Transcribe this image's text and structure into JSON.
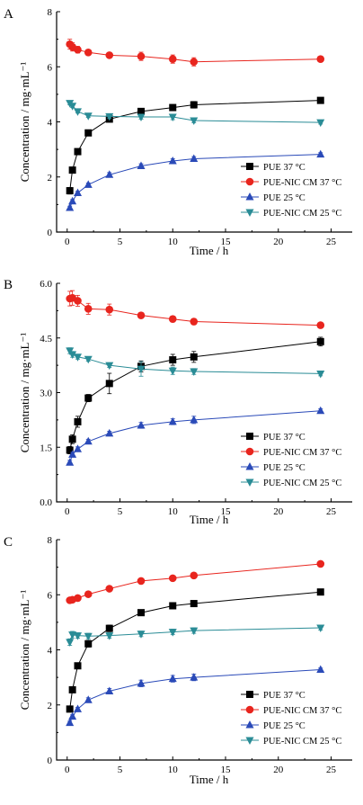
{
  "chart_data": [
    {
      "type": "line",
      "panel": "A",
      "xlabel": "Time / h",
      "ylabel": "Concentration / mg·mL⁻¹",
      "xlim": [
        -1,
        27
      ],
      "ylim": [
        0,
        8
      ],
      "xticks": [
        0,
        5,
        10,
        15,
        20,
        25
      ],
      "yticks": [
        0,
        2,
        4,
        6,
        8
      ],
      "ytick_labels": [
        "0",
        "2",
        "4",
        "6",
        "8"
      ],
      "legend_position": "bottom-right",
      "series": [
        {
          "name": "PUE 37 °C",
          "color": "#000000",
          "marker": "square",
          "x": [
            0.25,
            0.5,
            1,
            2,
            4,
            7,
            10,
            12,
            24
          ],
          "y": [
            1.5,
            2.25,
            2.92,
            3.6,
            4.1,
            4.38,
            4.52,
            4.62,
            4.78
          ],
          "err": [
            0.12,
            0.1,
            0.1,
            0.08,
            0.1,
            0.1,
            0.1,
            0.12,
            0.08
          ]
        },
        {
          "name": "PUE-NIC CM 37 °C",
          "color": "#e8251e",
          "marker": "circle",
          "x": [
            0.25,
            0.5,
            1,
            2,
            4,
            7,
            10,
            12,
            24
          ],
          "y": [
            6.82,
            6.72,
            6.62,
            6.52,
            6.42,
            6.38,
            6.28,
            6.18,
            6.28
          ],
          "err": [
            0.18,
            0.15,
            0.12,
            0.1,
            0.1,
            0.15,
            0.15,
            0.15,
            0.05
          ]
        },
        {
          "name": "PUE 25 °C",
          "color": "#2a4ab8",
          "marker": "triangle-up",
          "x": [
            0.25,
            0.5,
            1,
            2,
            4,
            7,
            10,
            12,
            24
          ],
          "y": [
            0.88,
            1.12,
            1.42,
            1.72,
            2.08,
            2.4,
            2.58,
            2.66,
            2.82
          ],
          "err": [
            0.06,
            0.06,
            0.06,
            0.06,
            0.08,
            0.08,
            0.08,
            0.08,
            0.06
          ]
        },
        {
          "name": "PUE-NIC CM 25 °C",
          "color": "#2a8c96",
          "marker": "triangle-down",
          "x": [
            0.25,
            0.5,
            1,
            2,
            4,
            7,
            10,
            12,
            24
          ],
          "y": [
            4.68,
            4.58,
            4.38,
            4.22,
            4.2,
            4.18,
            4.18,
            4.05,
            3.98
          ],
          "err": [
            0.06,
            0.06,
            0.06,
            0.06,
            0.08,
            0.08,
            0.1,
            0.08,
            0.06
          ]
        }
      ]
    },
    {
      "type": "line",
      "panel": "B",
      "xlabel": "Time / h",
      "ylabel": "Concentration / mg·mL⁻¹",
      "xlim": [
        -1,
        27
      ],
      "ylim": [
        0,
        6
      ],
      "xticks": [
        0,
        5,
        10,
        15,
        20,
        25
      ],
      "yticks": [
        0,
        1.5,
        3,
        4.5,
        6
      ],
      "ytick_labels": [
        "0.0",
        "1.5",
        "3.0",
        "4.5",
        "6.0"
      ],
      "legend_position": "bottom-right",
      "series": [
        {
          "name": "PUE 37 °C",
          "color": "#000000",
          "marker": "square",
          "x": [
            0.25,
            0.5,
            1,
            2,
            4,
            7,
            10,
            12,
            24
          ],
          "y": [
            1.42,
            1.72,
            2.2,
            2.85,
            3.25,
            3.72,
            3.9,
            3.98,
            4.4
          ],
          "err": [
            0.1,
            0.12,
            0.15,
            0.1,
            0.28,
            0.15,
            0.15,
            0.15,
            0.12
          ]
        },
        {
          "name": "PUE-NIC CM 37 °C",
          "color": "#e8251e",
          "marker": "circle",
          "x": [
            0.25,
            0.5,
            1,
            2,
            4,
            7,
            10,
            12,
            24
          ],
          "y": [
            5.58,
            5.6,
            5.52,
            5.3,
            5.28,
            5.12,
            5.02,
            4.95,
            4.85
          ],
          "err": [
            0.2,
            0.2,
            0.15,
            0.15,
            0.15,
            0.08,
            0.08,
            0.08,
            0.06
          ]
        },
        {
          "name": "PUE 25 °C",
          "color": "#2a4ab8",
          "marker": "triangle-up",
          "x": [
            0.25,
            0.5,
            1,
            2,
            4,
            7,
            10,
            12,
            24
          ],
          "y": [
            1.08,
            1.3,
            1.45,
            1.66,
            1.88,
            2.1,
            2.2,
            2.25,
            2.5
          ],
          "err": [
            0.06,
            0.06,
            0.06,
            0.06,
            0.06,
            0.08,
            0.08,
            0.1,
            0.06
          ]
        },
        {
          "name": "PUE-NIC CM 25 °C",
          "color": "#2a8c96",
          "marker": "triangle-down",
          "x": [
            0.25,
            0.5,
            1,
            2,
            4,
            7,
            10,
            12,
            24
          ],
          "y": [
            4.15,
            4.05,
            3.98,
            3.92,
            3.75,
            3.65,
            3.6,
            3.58,
            3.52
          ],
          "err": [
            0.08,
            0.08,
            0.06,
            0.06,
            0.06,
            0.2,
            0.1,
            0.08,
            0.06
          ]
        }
      ]
    },
    {
      "type": "line",
      "panel": "C",
      "xlabel": "Time / h",
      "ylabel": "Concentration / mg·mL⁻¹",
      "xlim": [
        -1,
        27
      ],
      "ylim": [
        0,
        8
      ],
      "xticks": [
        0,
        5,
        10,
        15,
        20,
        25
      ],
      "yticks": [
        0,
        2,
        4,
        6,
        8
      ],
      "ytick_labels": [
        "0",
        "2",
        "4",
        "6",
        "8"
      ],
      "legend_position": "bottom-right",
      "series": [
        {
          "name": "PUE 37 °C",
          "color": "#000000",
          "marker": "square",
          "x": [
            0.25,
            0.5,
            1,
            2,
            4,
            7,
            10,
            12,
            24
          ],
          "y": [
            1.85,
            2.55,
            3.42,
            4.22,
            4.78,
            5.35,
            5.6,
            5.68,
            6.1
          ],
          "err": [
            0.1,
            0.1,
            0.1,
            0.12,
            0.12,
            0.1,
            0.1,
            0.1,
            0.08
          ]
        },
        {
          "name": "PUE-NIC CM 37 °C",
          "color": "#e8251e",
          "marker": "circle",
          "x": [
            0.25,
            0.5,
            1,
            2,
            4,
            7,
            10,
            12,
            24
          ],
          "y": [
            5.8,
            5.82,
            5.88,
            6.02,
            6.22,
            6.5,
            6.6,
            6.7,
            7.12
          ],
          "err": [
            0.06,
            0.06,
            0.06,
            0.06,
            0.06,
            0.06,
            0.06,
            0.08,
            0.06
          ]
        },
        {
          "name": "PUE 25 °C",
          "color": "#2a4ab8",
          "marker": "triangle-up",
          "x": [
            0.25,
            0.5,
            1,
            2,
            4,
            7,
            10,
            12,
            24
          ],
          "y": [
            1.35,
            1.58,
            1.85,
            2.18,
            2.5,
            2.78,
            2.95,
            3.0,
            3.28
          ],
          "err": [
            0.06,
            0.06,
            0.06,
            0.08,
            0.1,
            0.12,
            0.12,
            0.12,
            0.06
          ]
        },
        {
          "name": "PUE-NIC CM 25 °C",
          "color": "#2a8c96",
          "marker": "triangle-down",
          "x": [
            0.25,
            0.5,
            1,
            2,
            4,
            7,
            10,
            12,
            24
          ],
          "y": [
            4.28,
            4.55,
            4.52,
            4.5,
            4.52,
            4.58,
            4.65,
            4.7,
            4.8
          ],
          "err": [
            0.12,
            0.12,
            0.1,
            0.1,
            0.1,
            0.1,
            0.1,
            0.1,
            0.08
          ]
        }
      ]
    }
  ]
}
